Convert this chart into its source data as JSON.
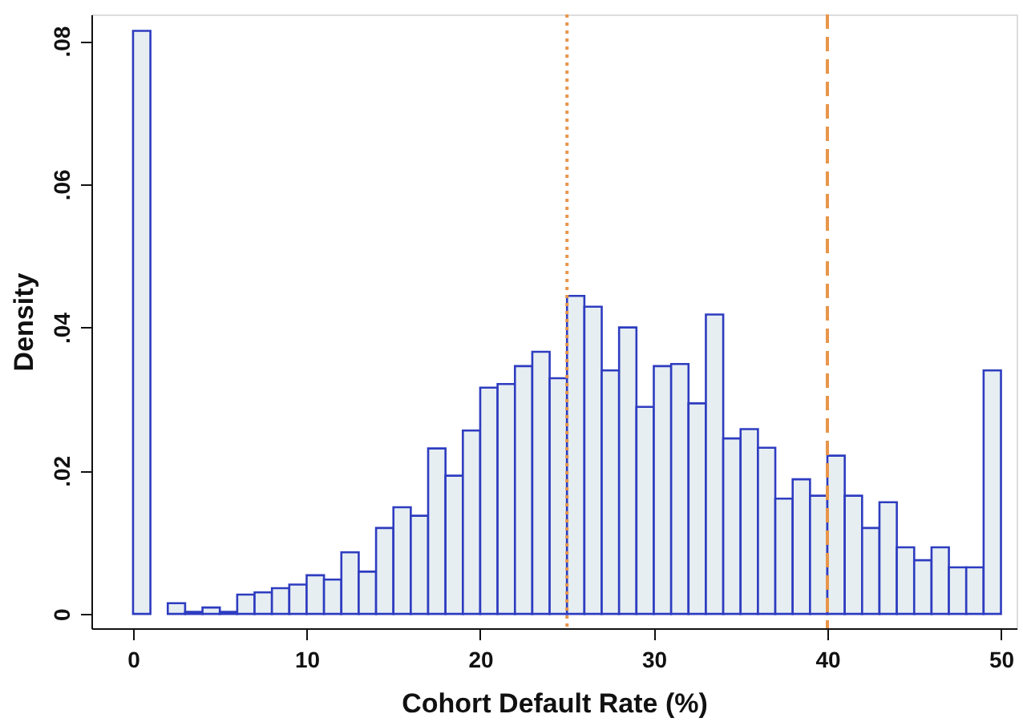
{
  "chart_data": {
    "type": "histogram",
    "xlabel": "Cohort Default Rate (%)",
    "ylabel": "Density",
    "bins": [
      0,
      1,
      2,
      3,
      4,
      5,
      6,
      7,
      8,
      9,
      10,
      11,
      12,
      13,
      14,
      15,
      16,
      17,
      18,
      19,
      20,
      21,
      22,
      23,
      24,
      25,
      26,
      27,
      28,
      29,
      30,
      31,
      32,
      33,
      34,
      35,
      36,
      37,
      38,
      39,
      40,
      41,
      42,
      43,
      44,
      45,
      46,
      47,
      48,
      49,
      50
    ],
    "values": [
      0.0814,
      null,
      0.0015,
      0.0003,
      0.0009,
      0.0003,
      0.0027,
      0.003,
      0.0036,
      0.0041,
      0.0054,
      0.0048,
      0.0086,
      0.0059,
      0.012,
      0.0149,
      0.0137,
      0.0231,
      0.0193,
      0.0256,
      0.0316,
      0.0321,
      0.0346,
      0.0366,
      0.0329,
      0.0444,
      0.0429,
      0.034,
      0.04,
      0.0289,
      0.0346,
      0.0349,
      0.0294,
      0.0418,
      0.0245,
      0.0258,
      0.0232,
      0.0161,
      0.0188,
      0.0165,
      0.0221,
      0.0165,
      0.012,
      0.0156,
      0.0093,
      0.0075,
      0.0093,
      0.0065,
      0.0065,
      0.034
    ],
    "color": "#e6eef2",
    "xlim": [
      -2.4,
      50.9
    ],
    "xticks": [
      0,
      10,
      20,
      30,
      40,
      50
    ],
    "ylim": [
      -0.002,
      0.0837
    ],
    "yticks": [
      {
        "value": 0,
        "label": "0"
      },
      {
        "value": 0.02,
        "label": ".02"
      },
      {
        "value": 0.04,
        "label": ".04"
      },
      {
        "value": 0.06,
        "label": ".06"
      },
      {
        "value": 0.08,
        "label": ".08"
      }
    ],
    "ref_lines": [
      {
        "axis": "x",
        "value": 25,
        "color": "#e8954a",
        "line_style": "dotted"
      },
      {
        "axis": "x",
        "value": 40,
        "color": "#e8954a",
        "line_style": "dashed"
      }
    ],
    "grid": false
  }
}
